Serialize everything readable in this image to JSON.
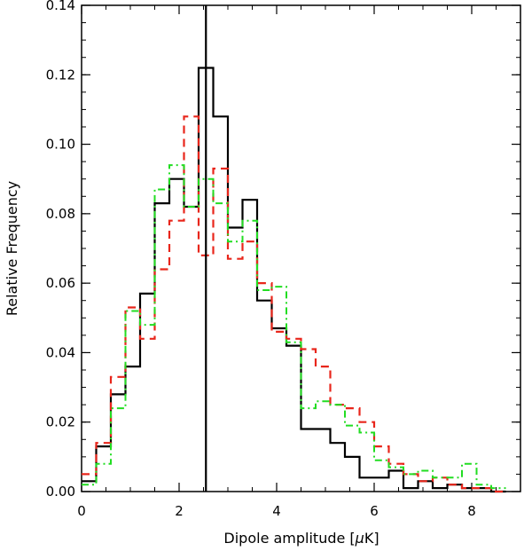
{
  "chart_data": {
    "type": "histogram-step",
    "title": "",
    "xlabel_prefix": "Dipole amplitude [",
    "xlabel_mu": "μ",
    "xlabel_suffix": "K]",
    "ylabel": "Relative Frequency",
    "xlim": [
      0,
      9
    ],
    "ylim": [
      0,
      0.14
    ],
    "xticks": [
      0,
      2,
      4,
      6,
      8
    ],
    "yticks": [
      0.0,
      0.02,
      0.04,
      0.06,
      0.08,
      0.1,
      0.12,
      0.14
    ],
    "ytick_labels": [
      "0.00",
      "0.02",
      "0.04",
      "0.06",
      "0.08",
      "0.10",
      "0.12",
      "0.14"
    ],
    "vline_x": 2.55,
    "grid": false,
    "legend": "none",
    "series": [
      {
        "style": "solid",
        "color": "#000000",
        "edges": [
          0.0,
          0.3,
          0.6,
          0.9,
          1.2,
          1.5,
          1.8,
          2.1,
          2.4,
          2.7,
          3.0,
          3.3,
          3.6,
          3.9,
          4.2,
          4.5,
          4.8,
          5.1,
          5.4,
          5.7,
          6.0,
          6.3,
          6.6,
          6.9,
          7.2,
          7.5,
          7.8,
          8.1,
          8.4,
          8.7
        ],
        "values": [
          0.003,
          0.013,
          0.028,
          0.036,
          0.057,
          0.083,
          0.09,
          0.082,
          0.122,
          0.108,
          0.076,
          0.084,
          0.055,
          0.047,
          0.042,
          0.018,
          0.018,
          0.014,
          0.01,
          0.004,
          0.004,
          0.006,
          0.001,
          0.003,
          0.001,
          0.002,
          0.001,
          0.001,
          0.0
        ]
      },
      {
        "style": "dashed",
        "color": "#e8261b",
        "edges": [
          0.0,
          0.3,
          0.6,
          0.9,
          1.2,
          1.5,
          1.8,
          2.1,
          2.4,
          2.7,
          3.0,
          3.3,
          3.6,
          3.9,
          4.2,
          4.5,
          4.8,
          5.1,
          5.4,
          5.7,
          6.0,
          6.3,
          6.6,
          6.9,
          7.2,
          7.5,
          7.8,
          8.1,
          8.4,
          8.7
        ],
        "values": [
          0.005,
          0.014,
          0.033,
          0.053,
          0.044,
          0.064,
          0.078,
          0.108,
          0.068,
          0.093,
          0.067,
          0.072,
          0.06,
          0.046,
          0.044,
          0.041,
          0.036,
          0.025,
          0.024,
          0.02,
          0.013,
          0.008,
          0.005,
          0.003,
          0.004,
          0.002,
          0.001,
          0.001,
          0.0
        ]
      },
      {
        "style": "dashdot",
        "color": "#22dd22",
        "edges": [
          0.0,
          0.3,
          0.6,
          0.9,
          1.2,
          1.5,
          1.8,
          2.1,
          2.4,
          2.7,
          3.0,
          3.3,
          3.6,
          3.9,
          4.2,
          4.5,
          4.8,
          5.1,
          5.4,
          5.7,
          6.0,
          6.3,
          6.6,
          6.9,
          7.2,
          7.5,
          7.8,
          8.1,
          8.4,
          8.7
        ],
        "values": [
          0.002,
          0.008,
          0.024,
          0.052,
          0.048,
          0.087,
          0.094,
          0.082,
          0.09,
          0.083,
          0.072,
          0.078,
          0.058,
          0.059,
          0.043,
          0.024,
          0.026,
          0.025,
          0.019,
          0.017,
          0.009,
          0.007,
          0.005,
          0.006,
          0.004,
          0.004,
          0.008,
          0.002,
          0.001
        ]
      }
    ]
  }
}
